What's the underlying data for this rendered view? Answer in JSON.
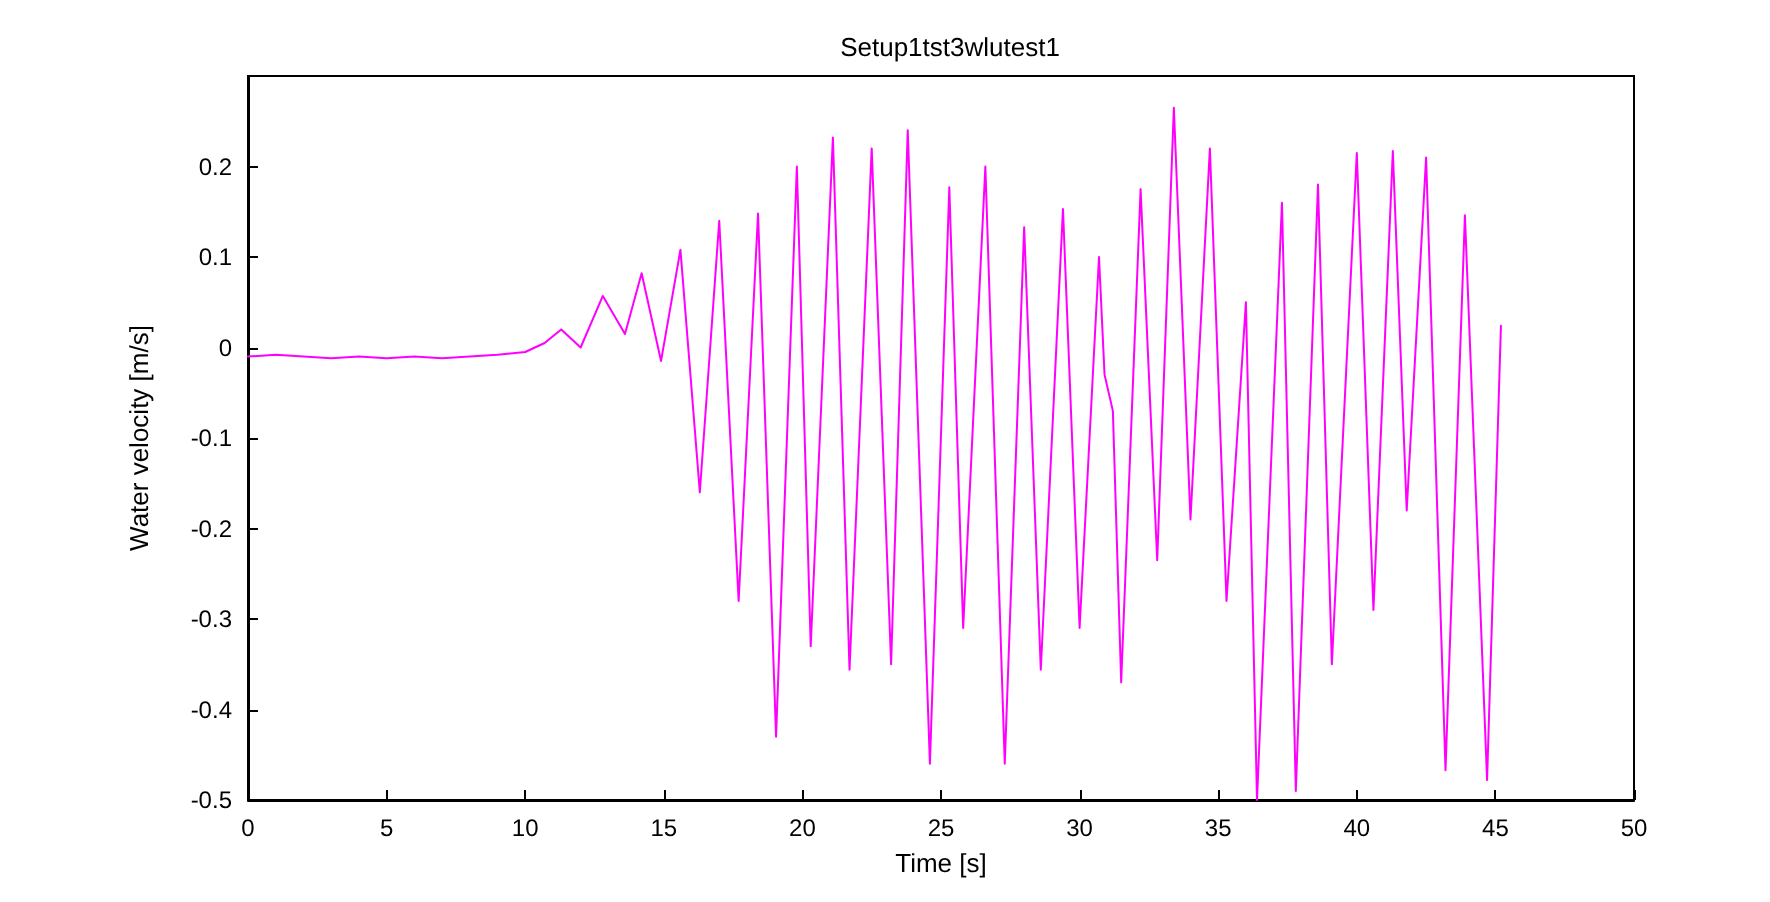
{
  "chart_data": {
    "type": "line",
    "title": "Setup1tst3wlutest1",
    "xlabel": "Time [s]",
    "ylabel": "Water velocity [m/s]",
    "xlim": [
      0,
      50
    ],
    "xticks": [
      0,
      5,
      10,
      15,
      20,
      25,
      30,
      35,
      40,
      45,
      50
    ],
    "ylim": [
      -0.5,
      0.3
    ],
    "yticks": [
      -0.5,
      -0.4,
      -0.3,
      -0.2,
      -0.1,
      0,
      0.1,
      0.2
    ],
    "grid": false,
    "legend": false,
    "marker": "none",
    "line_style": "solid",
    "series": [
      {
        "color": "#ff00ff",
        "x": [
          0,
          1,
          2,
          3,
          4,
          5,
          6,
          7,
          8,
          9,
          10,
          10.7,
          11.3,
          12.0,
          12.8,
          13.6,
          14.2,
          14.9,
          15.6,
          16.3,
          17.0,
          17.7,
          18.4,
          19.05,
          19.8,
          20.3,
          21.1,
          21.7,
          22.5,
          23.2,
          23.8,
          24.6,
          25.3,
          25.8,
          26.6,
          27.3,
          28.0,
          28.6,
          29.4,
          30.0,
          30.7,
          30.9,
          31.2,
          31.5,
          32.2,
          32.8,
          33.4,
          34.0,
          34.7,
          35.3,
          36.0,
          36.4,
          37.3,
          37.8,
          38.6,
          39.1,
          40.0,
          40.6,
          41.3,
          41.8,
          42.5,
          43.2,
          43.9,
          44.7,
          45.2
        ],
        "values": [
          -0.01,
          -0.008,
          -0.01,
          -0.012,
          -0.01,
          -0.012,
          -0.01,
          -0.012,
          -0.01,
          -0.008,
          -0.005,
          0.005,
          0.02,
          0,
          0.057,
          0.015,
          0.082,
          -0.015,
          0.108,
          -0.16,
          0.14,
          -0.28,
          0.148,
          -0.43,
          0.2,
          -0.33,
          0.232,
          -0.356,
          0.22,
          -0.35,
          0.24,
          -0.46,
          0.177,
          -0.31,
          0.2,
          -0.46,
          0.133,
          -0.356,
          0.153,
          -0.31,
          0.1,
          -0.03,
          -0.07,
          -0.37,
          0.175,
          -0.235,
          0.265,
          -0.19,
          0.22,
          -0.28,
          0.05,
          -0.5,
          0.16,
          -0.49,
          0.18,
          -0.35,
          0.215,
          -0.29,
          0.217,
          -0.18,
          0.21,
          -0.467,
          0.146,
          -0.478,
          0.024
        ]
      }
    ]
  }
}
